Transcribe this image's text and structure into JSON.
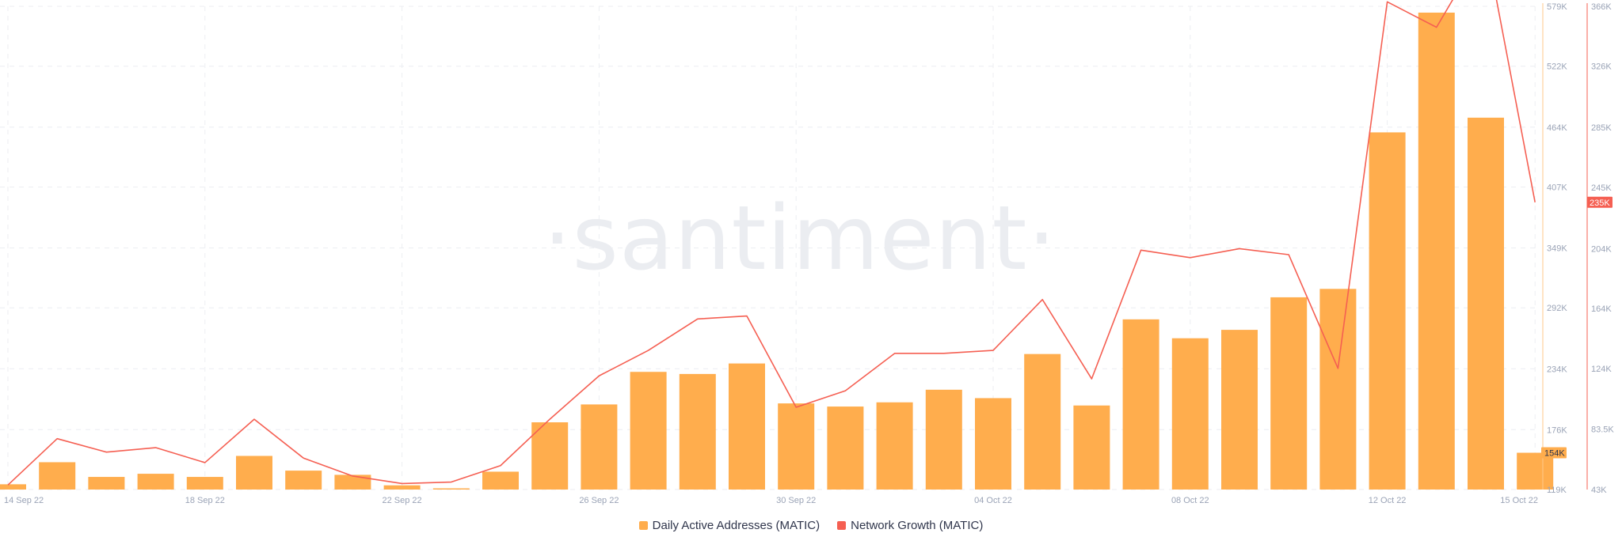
{
  "chart_data": {
    "type": "bar",
    "watermark": "·santiment·",
    "x": [
      "14 Sep 22",
      "15 Sep 22",
      "16 Sep 22",
      "17 Sep 22",
      "18 Sep 22",
      "19 Sep 22",
      "20 Sep 22",
      "21 Sep 22",
      "22 Sep 22",
      "23 Sep 22",
      "24 Sep 22",
      "25 Sep 22",
      "26 Sep 22",
      "27 Sep 22",
      "28 Sep 22",
      "29 Sep 22",
      "30 Sep 22",
      "01 Oct 22",
      "02 Oct 22",
      "03 Oct 22",
      "04 Oct 22",
      "05 Oct 22",
      "06 Oct 22",
      "07 Oct 22",
      "08 Oct 22",
      "09 Oct 22",
      "10 Oct 22",
      "11 Oct 22",
      "12 Oct 22",
      "13 Oct 22",
      "14 Oct 22",
      "15 Oct 22"
    ],
    "x_tick_labels": [
      "14 Sep 22",
      "18 Sep 22",
      "22 Sep 22",
      "26 Sep 22",
      "30 Sep 22",
      "04 Oct 22",
      "08 Oct 22",
      "12 Oct 22",
      "15 Oct 22"
    ],
    "series": [
      {
        "name": "Daily Active Addresses (MATIC)",
        "type": "bar",
        "axis": "left",
        "color": "#ffad4d",
        "values": [
          124000,
          145000,
          131000,
          134000,
          131000,
          151000,
          137000,
          133000,
          123000,
          120000,
          136000,
          183000,
          200000,
          231000,
          229000,
          239000,
          201000,
          198000,
          202000,
          214000,
          206000,
          248000,
          199000,
          281000,
          263000,
          271000,
          302000,
          310000,
          459000,
          573000,
          473000,
          154000
        ]
      },
      {
        "name": "Network Growth (MATIC)",
        "type": "line",
        "axis": "right",
        "color": "#f55f52",
        "values": [
          46000,
          77000,
          68000,
          71000,
          61000,
          90000,
          64000,
          52000,
          47000,
          48000,
          59000,
          90000,
          119000,
          136000,
          157000,
          159000,
          98000,
          109000,
          134000,
          134000,
          136000,
          170000,
          117000,
          203000,
          198000,
          204000,
          200000,
          124000,
          369000,
          352000,
          408000,
          235000
        ]
      }
    ],
    "left_axis": {
      "ylim": [
        119000,
        579000
      ],
      "tick_labels": [
        "119K",
        "176K",
        "234K",
        "292K",
        "349K",
        "407K",
        "464K",
        "522K",
        "579K"
      ],
      "tick_values": [
        119000,
        176000,
        234000,
        292000,
        349000,
        407000,
        464000,
        522000,
        579000
      ],
      "current_value_label": "154K",
      "badge_color": "#ffad4d"
    },
    "right_axis": {
      "ylim": [
        43000,
        366000
      ],
      "tick_labels": [
        "43K",
        "83.5K",
        "124K",
        "164K",
        "204K",
        "245K",
        "285K",
        "326K",
        "366K"
      ],
      "tick_values": [
        43000,
        83500,
        124000,
        164000,
        204000,
        245000,
        285000,
        326000,
        366000
      ],
      "current_value_label": "235K",
      "badge_color": "#f55f52"
    },
    "grid": true,
    "legend_placement": "bottom-center"
  }
}
